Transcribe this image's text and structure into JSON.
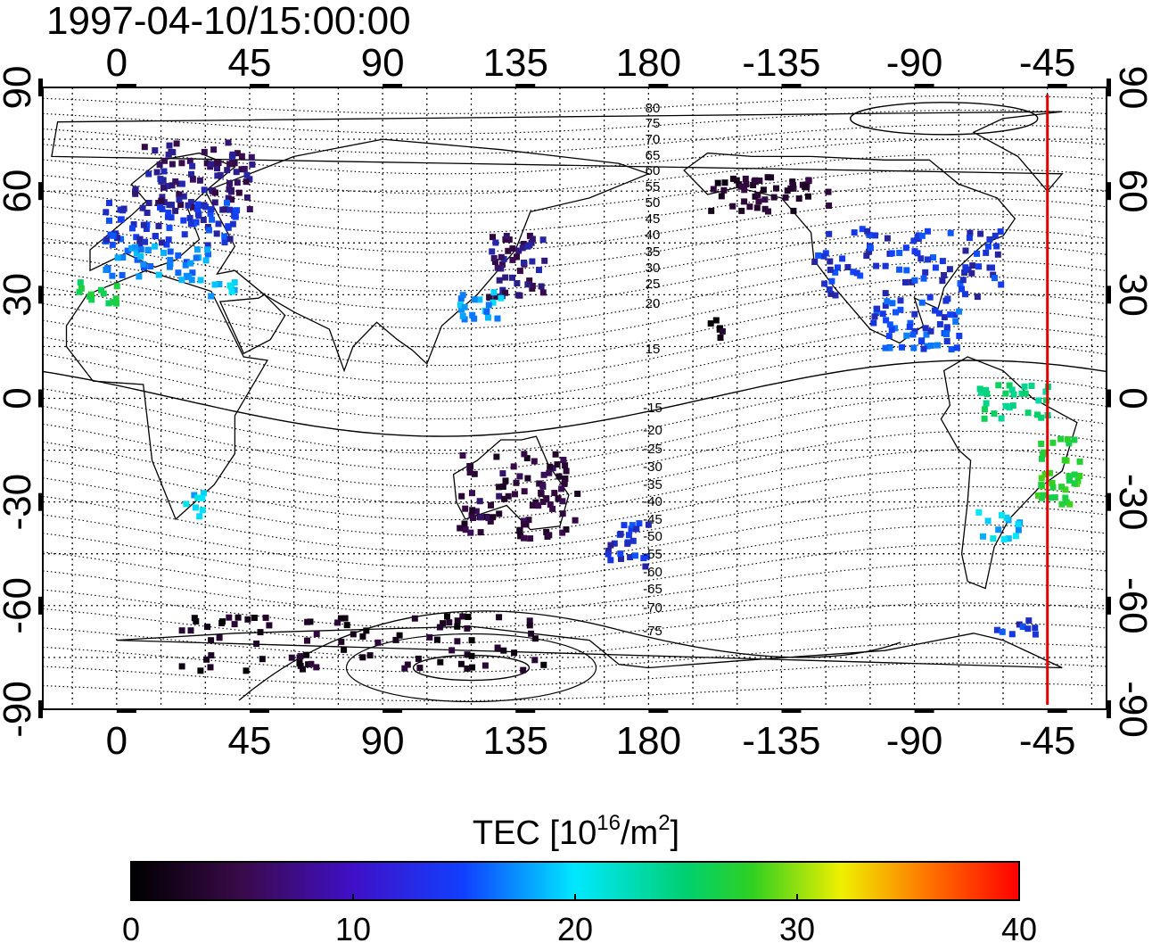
{
  "title": "1997-04-10/15:00:00",
  "top_lon_ticks": [
    "0",
    "45",
    "90",
    "135",
    "180",
    "-135",
    "-90",
    "-45"
  ],
  "bottom_lon_ticks": [
    "0",
    "45",
    "90",
    "135",
    "180",
    "-135",
    "-90",
    "-45"
  ],
  "left_lat_ticks": [
    "90",
    "60",
    "30",
    "0",
    "-30",
    "-60",
    "-90"
  ],
  "right_lat_ticks": [
    "90",
    "60",
    "30",
    "0",
    "-30",
    "-60",
    "-90"
  ],
  "contour_labels_north": [
    "80",
    "75",
    "70",
    "65",
    "60",
    "55",
    "50",
    "45",
    "40",
    "35",
    "30",
    "25",
    "20",
    "15"
  ],
  "contour_labels_south": [
    "-15",
    "-20",
    "-25",
    "-30",
    "-35",
    "-40",
    "-45",
    "-50",
    "-55",
    "-60",
    "-65",
    "-70",
    "-75"
  ],
  "colorbar": {
    "label_main": "TEC  [10",
    "label_sup": "16",
    "label_unit": "/m",
    "label_sup2": "2",
    "label_end": "]",
    "ticks": [
      "0",
      "10",
      "20",
      "30",
      "40"
    ],
    "min": 0,
    "max": 40
  },
  "map": {
    "lon_extent": [
      -25,
      335
    ],
    "lat_extent": [
      -90,
      90
    ],
    "terminator_lon": -45,
    "terminator_color": "#e00000"
  },
  "tec_clusters": [
    {
      "name": "europe-north",
      "lon": [
        5,
        45
      ],
      "lat": [
        55,
        75
      ],
      "value": 6
    },
    {
      "name": "europe-central",
      "lon": [
        -5,
        40
      ],
      "lat": [
        45,
        58
      ],
      "value": 9
    },
    {
      "name": "europe-south",
      "lon": [
        -5,
        30
      ],
      "lat": [
        35,
        45
      ],
      "value": 12
    },
    {
      "name": "iberia-morocco",
      "lon": [
        -15,
        0
      ],
      "lat": [
        28,
        35
      ],
      "value": 22
    },
    {
      "name": "middle-east",
      "lon": [
        30,
        40
      ],
      "lat": [
        30,
        36
      ],
      "value": 14
    },
    {
      "name": "japan",
      "lon": [
        125,
        145
      ],
      "lat": [
        30,
        50
      ],
      "value": 6
    },
    {
      "name": "east-china",
      "lon": [
        115,
        130
      ],
      "lat": [
        22,
        32
      ],
      "value": 13
    },
    {
      "name": "north-america",
      "lon": [
        235,
        300
      ],
      "lat": [
        30,
        50
      ],
      "value": 9
    },
    {
      "name": "gulf-mexico",
      "lon": [
        255,
        285
      ],
      "lat": [
        15,
        30
      ],
      "value": 10
    },
    {
      "name": "alaska",
      "lon": [
        200,
        240
      ],
      "lat": [
        55,
        65
      ],
      "value": 3
    },
    {
      "name": "hawaii",
      "lon": [
        200,
        205
      ],
      "lat": [
        18,
        24
      ],
      "value": 1
    },
    {
      "name": "brazil",
      "lon": [
        310,
        325
      ],
      "lat": [
        -30,
        -10
      ],
      "value": 24
    },
    {
      "name": "south-america-north",
      "lon": [
        290,
        315
      ],
      "lat": [
        -5,
        5
      ],
      "value": 20
    },
    {
      "name": "argentina",
      "lon": [
        290,
        305
      ],
      "lat": [
        -40,
        -32
      ],
      "value": 14
    },
    {
      "name": "new-zealand",
      "lon": [
        165,
        180
      ],
      "lat": [
        -48,
        -35
      ],
      "value": 9
    },
    {
      "name": "australia",
      "lon": [
        115,
        155
      ],
      "lat": [
        -40,
        -15
      ],
      "value": 4
    },
    {
      "name": "south-africa",
      "lon": [
        22,
        30
      ],
      "lat": [
        -34,
        -26
      ],
      "value": 14
    },
    {
      "name": "antarctic",
      "lon": [
        20,
        145
      ],
      "lat": [
        -78,
        -62
      ],
      "value": 2
    },
    {
      "name": "antarctic-peninsula",
      "lon": [
        295,
        310
      ],
      "lat": [
        -68,
        -63
      ],
      "value": 9
    }
  ]
}
